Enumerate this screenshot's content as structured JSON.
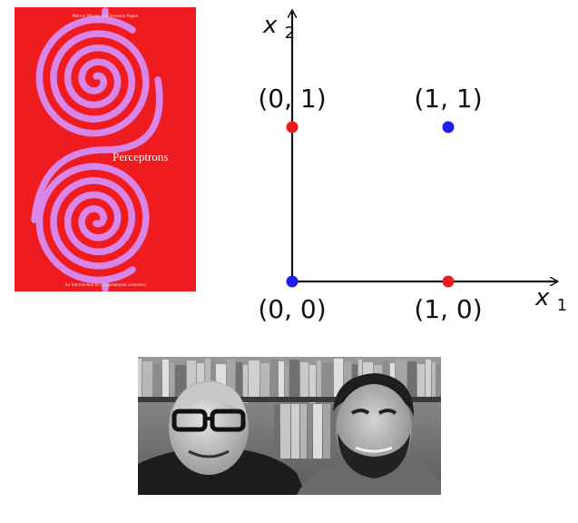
{
  "book_cover": {
    "authors": "Marvin Minsky and Seymour Papert",
    "title": "Perceptrons",
    "subtitle": "An Introduction to Computational Geometry",
    "background_color": "#ef1c1f",
    "spiral_color": "#d886e8"
  },
  "chart_data": {
    "type": "scatter",
    "title": "",
    "xlabel": "x1",
    "ylabel": "x2",
    "xlim": [
      0,
      1
    ],
    "ylim": [
      0,
      1
    ],
    "grid": false,
    "legend": "none",
    "points": [
      {
        "x": 0,
        "y": 0,
        "label": "(0,0)",
        "color": "#1f1fe8"
      },
      {
        "x": 1,
        "y": 0,
        "label": "(1,0)",
        "color": "#e81f1f"
      },
      {
        "x": 0,
        "y": 1,
        "label": "(0,1)",
        "color": "#e81f1f"
      },
      {
        "x": 1,
        "y": 1,
        "label": "(1,1)",
        "color": "#1f1fe8"
      }
    ]
  },
  "photo": {
    "description_icon": "portrait-photo-icon",
    "style": "grayscale"
  }
}
